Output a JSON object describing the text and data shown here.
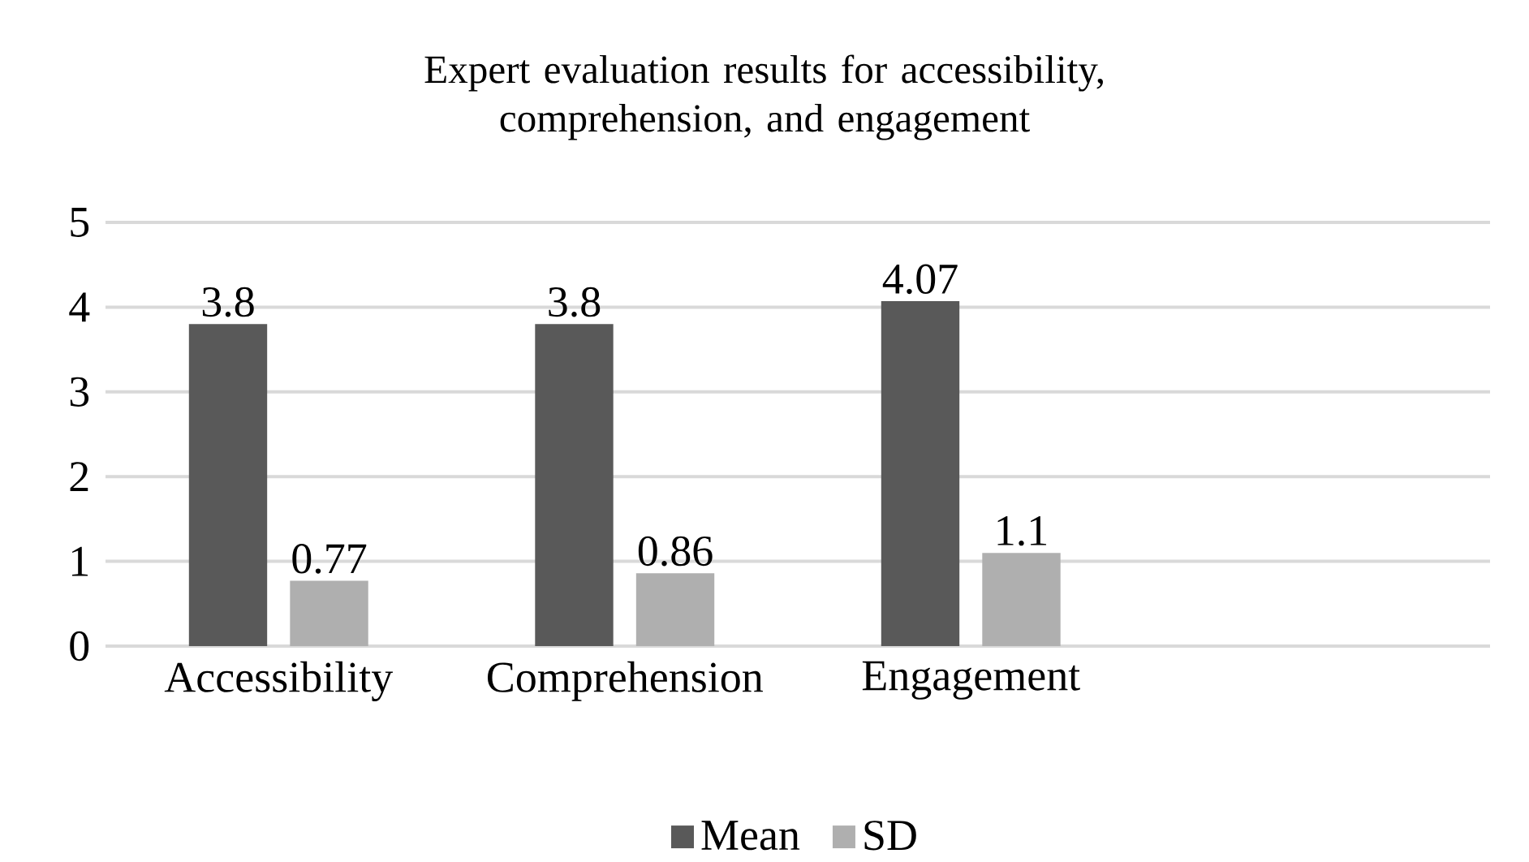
{
  "chart_data": {
    "type": "bar",
    "title": "Expert evaluation results for accessibility, comprehension, and engagement",
    "categories": [
      "Accessibility",
      "Comprehension",
      "Engagement",
      null
    ],
    "series": [
      {
        "name": "Mean",
        "color": "#595959",
        "values": [
          3.8,
          3.8,
          4.07,
          null
        ]
      },
      {
        "name": "SD",
        "color": "#afafaf",
        "values": [
          0.77,
          0.86,
          1.1,
          null
        ]
      }
    ],
    "ylim": [
      0,
      5
    ],
    "yticks": [
      0,
      1,
      2,
      3,
      4,
      5
    ],
    "grid": "y",
    "legend": "bottom",
    "data_labels": true
  }
}
